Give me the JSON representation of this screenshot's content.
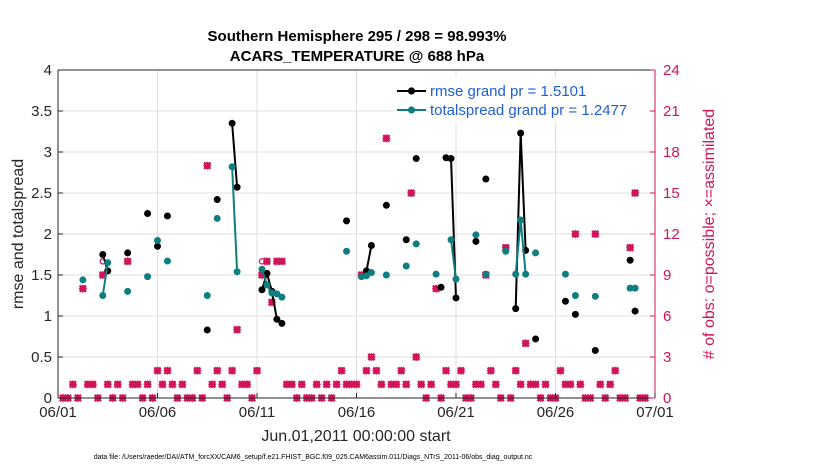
{
  "chart_data": {
    "type": "line",
    "title": [
      "Southern Hemisphere 295 / 298 = 98.993%",
      "ACARS_TEMPERATURE @ 688 hPa"
    ],
    "xlabel": "Jun.01,2011 00:00:00 start",
    "ylabel_left": "rmse and totalspread",
    "ylabel_right": "# of obs: o=possible; ×=assimilated",
    "xlim": [
      0,
      30
    ],
    "ylim_left": [
      0,
      4
    ],
    "ylim_right": [
      0,
      24
    ],
    "x_ticks": [
      0,
      5,
      10,
      15,
      20,
      25,
      30
    ],
    "x_tick_labels": [
      "06/01",
      "06/06",
      "06/11",
      "06/16",
      "06/21",
      "06/26",
      "07/01"
    ],
    "y_left_ticks": [
      0,
      0.5,
      1,
      1.5,
      2,
      2.5,
      3,
      3.5,
      4
    ],
    "y_left_tick_labels": [
      "0",
      "0.5",
      "1",
      "1.5",
      "2",
      "2.5",
      "3",
      "3.5",
      "4"
    ],
    "y_right_ticks": [
      0,
      3,
      6,
      9,
      12,
      15,
      18,
      21,
      24
    ],
    "y_right_tick_labels": [
      "0",
      "3",
      "6",
      "9",
      "12",
      "15",
      "18",
      "21",
      "24"
    ],
    "legend": {
      "placement": "top-right",
      "entries": [
        "rmse grand pr = 1.5101",
        "totalspread grand pr = 1.2477"
      ]
    },
    "colors": {
      "rmse": "#000000",
      "totalspread": "#0e7f7f",
      "obs": "#d0145a",
      "right_axis": "#d0145a",
      "legend_text": "#1f5fd6"
    },
    "series": [
      {
        "name": "rmse",
        "segments": [
          [
            [
              2.25,
              1.75
            ],
            [
              2.5,
              1.55
            ]
          ],
          [
            [
              8.75,
              3.35
            ],
            [
              9.0,
              2.57
            ]
          ],
          [
            [
              10.25,
              1.32
            ],
            [
              10.5,
              1.52
            ],
            [
              10.75,
              1.3
            ],
            [
              11.0,
              0.96
            ],
            [
              11.25,
              0.91
            ]
          ],
          [
            [
              15.5,
              1.55
            ],
            [
              15.75,
              1.86
            ]
          ],
          [
            [
              19.5,
              2.93
            ],
            [
              19.75,
              2.92
            ],
            [
              20.0,
              1.22
            ]
          ],
          [
            [
              23.0,
              1.09
            ],
            [
              23.25,
              3.23
            ],
            [
              23.5,
              1.8
            ]
          ]
        ],
        "singles": [
          [
            3.5,
            1.77
          ],
          [
            4.5,
            2.25
          ],
          [
            5.0,
            1.85
          ],
          [
            5.5,
            2.22
          ],
          [
            7.5,
            0.83
          ],
          [
            8.0,
            2.42
          ],
          [
            14.5,
            2.16
          ],
          [
            16.5,
            2.35
          ],
          [
            17.5,
            1.93
          ],
          [
            18.0,
            2.92
          ],
          [
            19.25,
            1.35
          ],
          [
            21.0,
            1.91
          ],
          [
            21.5,
            2.67
          ],
          [
            24.0,
            0.72
          ],
          [
            25.5,
            1.18
          ],
          [
            26.0,
            1.02
          ],
          [
            27.0,
            0.58
          ],
          [
            28.75,
            1.68
          ],
          [
            29.0,
            1.06
          ]
        ]
      },
      {
        "name": "totalspread",
        "segments": [
          [
            [
              2.25,
              1.25
            ],
            [
              2.5,
              1.65
            ]
          ],
          [
            [
              8.75,
              2.82
            ],
            [
              9.0,
              1.54
            ]
          ],
          [
            [
              10.25,
              1.57
            ],
            [
              10.5,
              1.38
            ],
            [
              10.75,
              1.28
            ],
            [
              11.0,
              1.27
            ],
            [
              11.25,
              1.23
            ]
          ],
          [
            [
              15.5,
              1.49
            ],
            [
              15.75,
              1.53
            ]
          ],
          [
            [
              19.75,
              1.93
            ],
            [
              20.0,
              1.45
            ]
          ],
          [
            [
              23.0,
              1.51
            ],
            [
              23.25,
              2.17
            ],
            [
              23.5,
              1.51
            ]
          ]
        ],
        "singles": [
          [
            1.25,
            1.44
          ],
          [
            3.5,
            1.3
          ],
          [
            4.5,
            1.48
          ],
          [
            5.0,
            1.92
          ],
          [
            5.5,
            1.67
          ],
          [
            7.5,
            1.25
          ],
          [
            8.0,
            2.19
          ],
          [
            14.5,
            1.79
          ],
          [
            15.25,
            1.48
          ],
          [
            16.5,
            1.5
          ],
          [
            17.5,
            1.61
          ],
          [
            18.0,
            1.88
          ],
          [
            19.0,
            1.51
          ],
          [
            21.0,
            1.99
          ],
          [
            21.5,
            1.51
          ],
          [
            22.5,
            1.79
          ],
          [
            24.0,
            1.77
          ],
          [
            25.5,
            1.51
          ],
          [
            26.0,
            1.25
          ],
          [
            27.0,
            1.24
          ],
          [
            28.75,
            1.34
          ],
          [
            29.0,
            1.34
          ]
        ]
      }
    ],
    "obs_assimilated": [
      [
        0.25,
        0
      ],
      [
        0.5,
        0
      ],
      [
        0.75,
        1
      ],
      [
        1.0,
        0
      ],
      [
        1.25,
        8
      ],
      [
        1.5,
        1
      ],
      [
        1.75,
        1
      ],
      [
        2.0,
        0
      ],
      [
        2.25,
        9
      ],
      [
        2.5,
        1
      ],
      [
        2.75,
        0
      ],
      [
        3.0,
        1
      ],
      [
        3.25,
        0
      ],
      [
        3.5,
        10
      ],
      [
        3.75,
        1
      ],
      [
        4.0,
        1
      ],
      [
        4.25,
        0
      ],
      [
        4.5,
        1
      ],
      [
        4.75,
        0
      ],
      [
        5.0,
        2
      ],
      [
        5.25,
        1
      ],
      [
        5.5,
        2
      ],
      [
        5.75,
        1
      ],
      [
        6.0,
        0
      ],
      [
        6.25,
        1
      ],
      [
        6.5,
        0
      ],
      [
        6.75,
        0
      ],
      [
        7.0,
        2
      ],
      [
        7.25,
        0
      ],
      [
        7.5,
        17
      ],
      [
        7.75,
        1
      ],
      [
        8.0,
        2
      ],
      [
        8.25,
        1
      ],
      [
        8.5,
        0
      ],
      [
        8.75,
        2
      ],
      [
        9.0,
        5
      ],
      [
        9.25,
        1
      ],
      [
        9.5,
        1
      ],
      [
        9.75,
        0
      ],
      [
        10.0,
        2
      ],
      [
        10.25,
        9
      ],
      [
        10.5,
        10
      ],
      [
        10.75,
        7
      ],
      [
        11.0,
        10
      ],
      [
        11.25,
        10
      ],
      [
        11.5,
        1
      ],
      [
        11.75,
        1
      ],
      [
        12.0,
        0
      ],
      [
        12.25,
        1
      ],
      [
        12.5,
        0
      ],
      [
        12.75,
        0
      ],
      [
        13.0,
        1
      ],
      [
        13.25,
        0
      ],
      [
        13.5,
        1
      ],
      [
        13.75,
        0
      ],
      [
        14.0,
        1
      ],
      [
        14.25,
        2
      ],
      [
        14.5,
        1
      ],
      [
        14.75,
        1
      ],
      [
        15.0,
        1
      ],
      [
        15.25,
        9
      ],
      [
        15.5,
        2
      ],
      [
        15.75,
        3
      ],
      [
        16.0,
        2
      ],
      [
        16.25,
        1
      ],
      [
        16.5,
        19
      ],
      [
        16.75,
        1
      ],
      [
        17.0,
        1
      ],
      [
        17.25,
        2
      ],
      [
        17.5,
        1
      ],
      [
        17.75,
        15
      ],
      [
        18.0,
        3
      ],
      [
        18.25,
        1
      ],
      [
        18.5,
        0
      ],
      [
        18.75,
        1
      ],
      [
        19.0,
        8
      ],
      [
        19.25,
        0
      ],
      [
        19.5,
        2
      ],
      [
        19.75,
        1
      ],
      [
        20.0,
        1
      ],
      [
        20.25,
        2
      ],
      [
        20.5,
        0
      ],
      [
        20.75,
        0
      ],
      [
        21.0,
        1
      ],
      [
        21.25,
        1
      ],
      [
        21.5,
        9
      ],
      [
        21.75,
        2
      ],
      [
        22.0,
        1
      ],
      [
        22.25,
        0
      ],
      [
        22.5,
        11
      ],
      [
        22.75,
        0
      ],
      [
        23.0,
        2
      ],
      [
        23.25,
        1
      ],
      [
        23.5,
        4
      ],
      [
        23.75,
        1
      ],
      [
        24.0,
        1
      ],
      [
        24.25,
        0
      ],
      [
        24.5,
        1
      ],
      [
        24.75,
        0
      ],
      [
        25.0,
        0
      ],
      [
        25.25,
        2
      ],
      [
        25.5,
        1
      ],
      [
        25.75,
        1
      ],
      [
        26.0,
        12
      ],
      [
        26.25,
        1
      ],
      [
        26.5,
        0
      ],
      [
        26.75,
        0
      ],
      [
        27.0,
        12
      ],
      [
        27.25,
        1
      ],
      [
        27.5,
        0
      ],
      [
        27.75,
        1
      ],
      [
        28.0,
        2
      ],
      [
        28.25,
        0
      ],
      [
        28.5,
        0
      ],
      [
        28.75,
        11
      ],
      [
        29.0,
        15
      ],
      [
        29.25,
        0
      ],
      [
        29.5,
        0
      ]
    ],
    "obs_possible": [
      [
        2.25,
        10
      ],
      [
        10.25,
        10
      ],
      [
        17.25,
        2
      ]
    ],
    "footnote": "data file: /Users/raeder/DAI/ATM_forcXX/CAM6_setup/f.e21.FHIST_BGC.f09_025.CAM6assim.011/Diags_NTrS_2011-06/obs_diag_output.nc"
  }
}
